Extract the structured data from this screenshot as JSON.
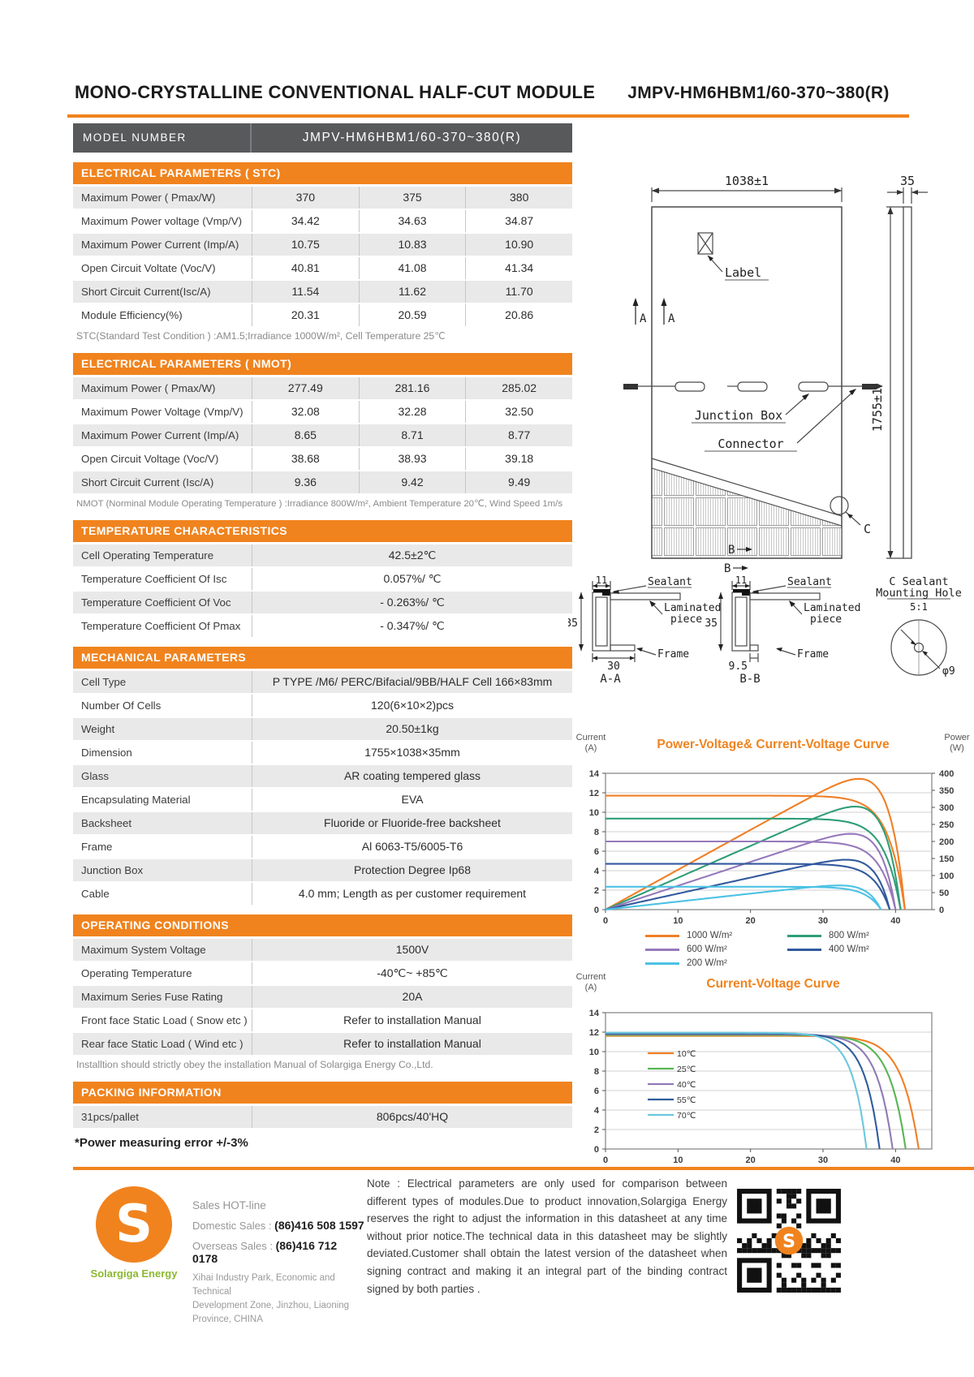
{
  "page": {
    "title": "MONO-CRYSTALLINE  CONVENTIONAL HALF-CUT  MODULE",
    "model_code": "JMPV-HM6HBM1/60-370~380(R)"
  },
  "model_bar": {
    "label": "MODEL   NUMBER",
    "value": "JMPV-HM6HBM1/60-370~380(R)"
  },
  "tables": {
    "stc": {
      "header": "ELECTRICAL PARAMETERS ( STC)",
      "rows": [
        [
          "Maximum Power ( Pmax/W)",
          "370",
          "375",
          "380"
        ],
        [
          "Maximum Power voltage (Vmp/V)",
          "34.42",
          "34.63",
          "34.87"
        ],
        [
          "Maximum Power Current (Imp/A)",
          "10.75",
          "10.83",
          "10.90"
        ],
        [
          "Open Circuit Voltate (Voc/V)",
          "40.81",
          "41.08",
          "41.34"
        ],
        [
          "Short Circuit Current(Isc/A)",
          "11.54",
          "11.62",
          "11.70"
        ],
        [
          "Module Efficiency(%)",
          "20.31",
          "20.59",
          "20.86"
        ]
      ],
      "footnote": "STC(Standard Test Condition ) :AM1.5;Irradiance 1000W/m²,  Cell Temperature 25℃"
    },
    "nmot": {
      "header": "ELECTRICAL PARAMETERS ( NMOT)",
      "rows": [
        [
          "Maximum Power ( Pmax/W)",
          "277.49",
          "281.16",
          "285.02"
        ],
        [
          "Maximum Power Voltage (Vmp/V)",
          "32.08",
          "32.28",
          "32.50"
        ],
        [
          "Maximum Power Current (Imp/A)",
          "8.65",
          "8.71",
          "8.77"
        ],
        [
          "Open Circuit Voltage (Voc/V)",
          "38.68",
          "38.93",
          "39.18"
        ],
        [
          "Short Circuit Current (Isc/A)",
          "9.36",
          "9.42",
          "9.49"
        ]
      ],
      "footnote": "NMOT  (Norminal Module Operating Temperature ) :Irradiance 800W/m²,  Ambient Temperature 20℃,  Wind Speed 1m/s"
    },
    "temp": {
      "header": "TEMPERATURE CHARACTERISTICS",
      "rows": [
        [
          "Cell Operating Temperature",
          "42.5±2℃"
        ],
        [
          "Temperature Coefficient Of Isc",
          "0.057%/ ℃"
        ],
        [
          "Temperature Coefficient Of Voc",
          "- 0.263%/ ℃"
        ],
        [
          "Temperature Coefficient Of Pmax",
          "- 0.347%/ ℃"
        ]
      ]
    },
    "mech": {
      "header": "MECHANICAL PARAMETERS",
      "rows": [
        [
          "Cell Type",
          "P TYPE /M6/ PERC/Bifacial/9BB/HALF Cell 166×83mm"
        ],
        [
          "Number Of Cells",
          "120(6×10×2)pcs"
        ],
        [
          "Weight",
          "20.50±1kg"
        ],
        [
          "Dimension",
          "1755×1038×35mm"
        ],
        [
          "Glass",
          "AR coating tempered glass"
        ],
        [
          "Encapsulating Material",
          "EVA"
        ],
        [
          "Backsheet",
          "Fluoride or Fluoride-free backsheet"
        ],
        [
          "Frame",
          "Al 6063-T5/6005-T6"
        ],
        [
          "Junction Box",
          "Protection Degree Ip68"
        ],
        [
          "Cable",
          "4.0 mm;  Length as per customer requirement"
        ]
      ]
    },
    "oper": {
      "header": "OPERATING CONDITIONS",
      "rows": [
        [
          "Maximum System Voltage",
          "1500V"
        ],
        [
          "Operating Temperature",
          "-40℃~ +85℃"
        ],
        [
          "Maximum Series Fuse Rating",
          "20A"
        ],
        [
          "Front face Static Load ( Snow etc )",
          "Refer to installation Manual"
        ],
        [
          "Rear face Static Load ( Wind etc )",
          "Refer to installation Manual"
        ]
      ],
      "footnote": "Installtion should strictly obey the installation Manual of Solargiga  Energy Co.,Ltd."
    },
    "pack": {
      "header": "PACKING INFORMATION",
      "rows": [
        [
          "31pcs/pallet",
          "806pcs/40'HQ"
        ]
      ]
    }
  },
  "power_note": "*Power measuring error  +/-3%",
  "diagram": {
    "width_dim": "1038±1",
    "thickness_dim": "35",
    "height_dim": "1755±1",
    "label": "Label",
    "junction_box": "Junction Box",
    "connector": "Connector",
    "section_a": "A",
    "section_b": "B",
    "section_c": "C",
    "sealant": "Sealant",
    "laminated_line1": "Laminated",
    "laminated_line2": "piece",
    "frame": "Frame",
    "dim_11": "11",
    "dim_35": "35",
    "dim_30": "30",
    "dim_9_5": "9.5",
    "caption_aa": "A-A",
    "caption_bb": "B-B",
    "hole_line1": "C Sealant",
    "hole_line2": "Mounting Hole",
    "hole_scale": "5:1",
    "hole_dia": "φ9"
  },
  "chart_data": [
    {
      "type": "line",
      "title": "Power-Voltage& Current-Voltage Curve",
      "description": "Each irradiance level has an I-V curve (flat then dropping to Voc) and a P-V curve peaking near 35V",
      "x_axis": {
        "lim": [
          0,
          45
        ],
        "ticks": [
          0,
          10,
          20,
          30,
          40
        ]
      },
      "y_axis": {
        "label_1": "Current",
        "label_2": "(A)",
        "lim": [
          0,
          14
        ],
        "ticks": [
          0,
          2,
          4,
          6,
          8,
          10,
          12,
          14
        ]
      },
      "y2_axis": {
        "label_1": "Power",
        "label_2": "(W)",
        "lim": [
          0,
          400
        ],
        "ticks": [
          0,
          50,
          100,
          150,
          200,
          250,
          300,
          350,
          400
        ]
      },
      "grid": true,
      "legend_position": "bottom",
      "series": [
        {
          "name": "1000 W/m²",
          "color": "#F07F26",
          "isc": 11.7,
          "voc": 41.3,
          "pmax_w": 380
        },
        {
          "name": "800 W/m²",
          "color": "#2F9E77",
          "isc": 9.35,
          "voc": 40.7,
          "pmax_w": 303
        },
        {
          "name": "600 W/m²",
          "color": "#9679BC",
          "isc": 7.0,
          "voc": 40.0,
          "pmax_w": 226
        },
        {
          "name": "400 W/m²",
          "color": "#335A9E",
          "isc": 4.7,
          "voc": 39.2,
          "pmax_w": 150
        },
        {
          "name": "200 W/m²",
          "color": "#4CC2E4",
          "isc": 2.35,
          "voc": 38.0,
          "pmax_w": 74
        }
      ]
    },
    {
      "type": "line",
      "title": "Current-Voltage Curve",
      "description": "I-V curves at different cell temperatures",
      "x_axis": {
        "lim": [
          0,
          45
        ],
        "ticks": [
          0,
          10,
          20,
          30,
          40
        ]
      },
      "y_axis": {
        "label_1": "Current",
        "label_2": "(A)",
        "lim": [
          0,
          14
        ],
        "ticks": [
          0,
          2,
          4,
          6,
          8,
          10,
          12,
          14
        ]
      },
      "grid": true,
      "legend_position": "inside-left",
      "legend_inside": true,
      "series": [
        {
          "name": "10℃",
          "color": "#F07F26",
          "isc": 11.62,
          "voc": 43.2
        },
        {
          "name": "25℃",
          "color": "#58B554",
          "isc": 11.7,
          "voc": 41.4
        },
        {
          "name": "40℃",
          "color": "#8F7BB5",
          "isc": 11.78,
          "voc": 39.6
        },
        {
          "name": "55℃",
          "color": "#2F5D9B",
          "isc": 11.86,
          "voc": 37.8
        },
        {
          "name": "70℃",
          "color": "#6BC8DE",
          "isc": 11.94,
          "voc": 36.0
        }
      ]
    }
  ],
  "footer": {
    "sales_title": "Sales HOT-line",
    "domestic_label": "Domestic Sales : ",
    "domestic_number": "(86)416 508 1597",
    "overseas_label": "Overseas Sales : ",
    "overseas_number": "(86)416 712 0178",
    "address_line1": "Xihai Industry Park, Economic and Technical",
    "address_line2": "Development  Zone, Jinzhou, Liaoning",
    "address_line3": "Province, CHINA",
    "brand": "Solargiga Energy",
    "logo_letter": "S",
    "note": "Note :  Electrical parameters are only used for comparison between different types of modules.Due to product innovation,Solargiga Energy reserves the right to adjust the information in this datasheet at any time without prior notice.The technical data in this datasheet may be slightly deviated.Customer shall obtain the latest version of the datasheet when signing contract and making it an integral part of the binding contract signed by both parties ."
  },
  "colors": {
    "accent_orange": "#F0831E",
    "model_bar_gray": "#58595B",
    "row_gray": "#E9E9E9",
    "brand_green": "#8CB832"
  }
}
